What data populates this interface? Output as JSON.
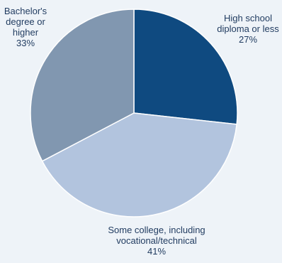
{
  "chart_data": {
    "type": "pie",
    "slices": [
      {
        "label_lines": [
          "High school",
          "diploma or less",
          "27%"
        ],
        "value": 27,
        "color": "#0f4a80"
      },
      {
        "label_lines": [
          "Some college, including",
          "vocational/technical",
          "41%"
        ],
        "value": 41,
        "color": "#b2c4de"
      },
      {
        "label_lines": [
          "Bachelor's",
          "degree or",
          "higher",
          "33%"
        ],
        "value": 33,
        "color": "#8197b0"
      }
    ]
  }
}
